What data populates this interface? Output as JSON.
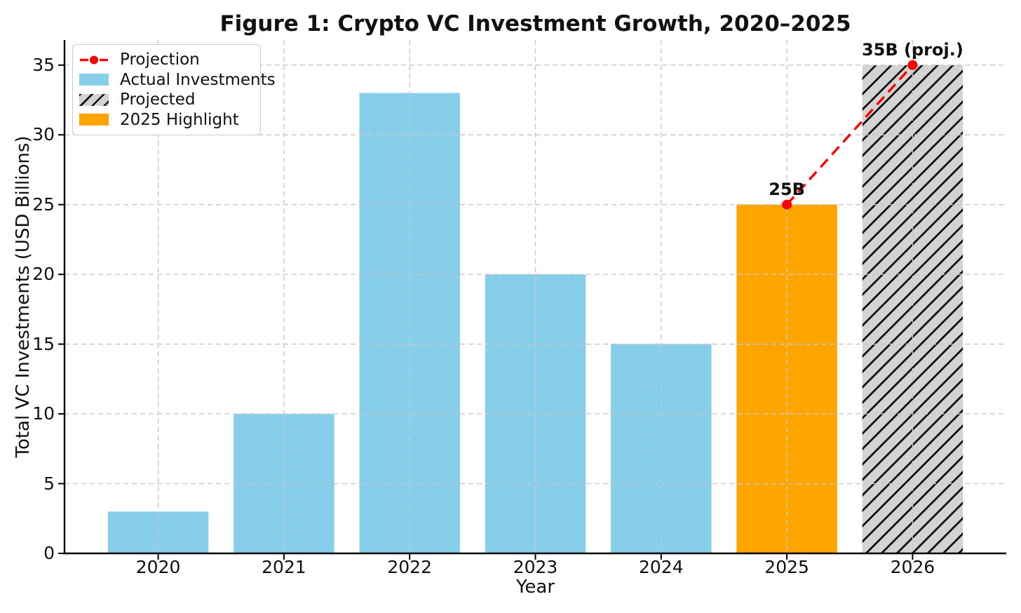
{
  "chart_data": {
    "type": "bar",
    "title": "Figure 1: Crypto VC Investment Growth, 2020–2025",
    "xlabel": "Year",
    "ylabel": "Total VC Investments (USD Billions)",
    "categories": [
      "2020",
      "2021",
      "2022",
      "2023",
      "2024",
      "2025",
      "2026"
    ],
    "bars": [
      {
        "category": "2020",
        "value": 3,
        "series": "Actual Investments"
      },
      {
        "category": "2021",
        "value": 10,
        "series": "Actual Investments"
      },
      {
        "category": "2022",
        "value": 33,
        "series": "Actual Investments"
      },
      {
        "category": "2023",
        "value": 20,
        "series": "Actual Investments"
      },
      {
        "category": "2024",
        "value": 15,
        "series": "Actual Investments"
      },
      {
        "category": "2025",
        "value": 25,
        "series": "2025 Highlight"
      },
      {
        "category": "2026",
        "value": 35,
        "series": "Projected",
        "hatched": true
      }
    ],
    "series_colors": {
      "Actual Investments": "#87CEEB",
      "2025 Highlight": "#FFA500",
      "Projected": "#D3D3D3"
    },
    "hatch_line_color": "#111111",
    "projection_line": {
      "label": "Projection",
      "color": "#FF0000",
      "points": [
        {
          "category": "2025",
          "value": 25
        },
        {
          "category": "2026",
          "value": 35
        }
      ]
    },
    "annotations": [
      {
        "text": "25B",
        "category": "2025",
        "value": 25
      },
      {
        "text": "35B (proj.)",
        "category": "2026",
        "value": 35
      }
    ],
    "yticks": [
      0,
      5,
      10,
      15,
      20,
      25,
      30,
      35
    ],
    "ylim": [
      0,
      36.8
    ],
    "grid": true,
    "grid_color": "#c8c8c8",
    "axis_text_color": "#111111",
    "legend": {
      "position": "upper left",
      "entries": [
        {
          "label": "Projection",
          "marker": "dashed-line-dot",
          "color": "#FF0000"
        },
        {
          "label": "Actual Investments",
          "marker": "swatch",
          "color": "#87CEEB"
        },
        {
          "label": "Projected",
          "marker": "hatched-swatch",
          "color": "#D3D3D3"
        },
        {
          "label": "2025 Highlight",
          "marker": "swatch",
          "color": "#FFA500"
        }
      ]
    }
  }
}
